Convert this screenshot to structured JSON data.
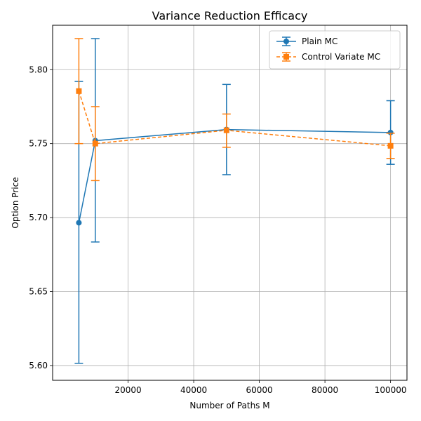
{
  "chart_data": {
    "type": "line",
    "title": "Variance Reduction Efficacy",
    "xlabel": "Number of Paths M",
    "ylabel": "Option Price",
    "xlim": [
      -3000,
      105000
    ],
    "ylim": [
      5.59,
      5.83
    ],
    "x_ticks": [
      20000,
      40000,
      60000,
      80000,
      100000
    ],
    "y_ticks": [
      5.6,
      5.65,
      5.7,
      5.75,
      5.8
    ],
    "x_tick_labels": [
      "20000",
      "40000",
      "60000",
      "80000",
      "100000"
    ],
    "y_tick_labels": [
      "5.60",
      "5.65",
      "5.70",
      "5.75",
      "5.80"
    ],
    "grid": true,
    "legend_position": "top-right",
    "series": [
      {
        "name": "Plain MC",
        "color": "#1f77b4",
        "marker": "circle",
        "linestyle": "solid",
        "x": [
          5000,
          10000,
          50000,
          100000
        ],
        "y": [
          5.6965,
          5.752,
          5.7595,
          5.7575
        ],
        "error_low": [
          5.6015,
          5.6835,
          5.729,
          5.736
        ],
        "error_high": [
          5.792,
          5.821,
          5.79,
          5.779
        ]
      },
      {
        "name": "Control Variate MC",
        "color": "#ff7f0e",
        "marker": "square",
        "linestyle": "dashed",
        "x": [
          5000,
          10000,
          50000,
          100000
        ],
        "y": [
          5.7855,
          5.75,
          5.759,
          5.7485
        ],
        "error_low": [
          5.75,
          5.725,
          5.7475,
          5.74
        ],
        "error_high": [
          5.821,
          5.775,
          5.77,
          5.757
        ]
      }
    ]
  }
}
